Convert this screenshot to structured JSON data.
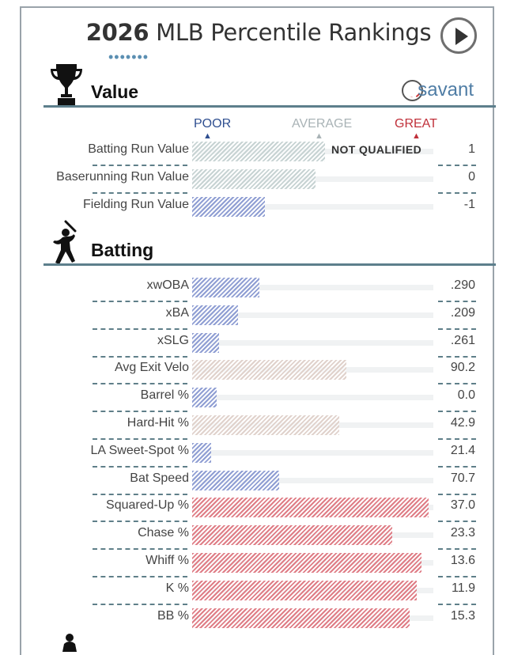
{
  "header": {
    "title_year": "2026",
    "title_rest": " MLB Percentile Rankings",
    "dots": "•••••••"
  },
  "brand": {
    "name": "savant"
  },
  "legend": {
    "poor": "POOR",
    "average": "AVERAGE",
    "great": "GREAT"
  },
  "colors": {
    "poor": "#2f4f90",
    "average": "#a9b3b6",
    "great": "#c0303a",
    "bar_blue": "#8f9ed3",
    "bar_grey": "#c7d3d3",
    "bar_beige": "#e0d2cc",
    "bar_red": "#df7d86",
    "rule": "#5d7f8c"
  },
  "sections": [
    {
      "title": "Value",
      "icon": "trophy-icon",
      "rows": [
        {
          "label": "Batting Run Value",
          "value": "1",
          "percentile": 55,
          "color": "bar_grey",
          "note": "NOT QUALIFIED"
        },
        {
          "label": "Baserunning Run Value",
          "value": "0",
          "percentile": 51,
          "color": "bar_grey",
          "note": ""
        },
        {
          "label": "Fielding Run Value",
          "value": "-1",
          "percentile": 30,
          "color": "bar_blue",
          "note": ""
        }
      ]
    },
    {
      "title": "Batting",
      "icon": "batter-icon",
      "rows": [
        {
          "label": "xwOBA",
          "value": ".290",
          "percentile": 28,
          "color": "bar_blue"
        },
        {
          "label": "xBA",
          "value": ".209",
          "percentile": 19,
          "color": "bar_blue"
        },
        {
          "label": "xSLG",
          "value": ".261",
          "percentile": 11,
          "color": "bar_blue"
        },
        {
          "label": "Avg Exit Velo",
          "value": "90.2",
          "percentile": 64,
          "color": "bar_beige"
        },
        {
          "label": "Barrel %",
          "value": "0.0",
          "percentile": 10,
          "color": "bar_blue"
        },
        {
          "label": "Hard-Hit %",
          "value": "42.9",
          "percentile": 61,
          "color": "bar_beige"
        },
        {
          "label": "LA Sweet-Spot %",
          "value": "21.4",
          "percentile": 8,
          "color": "bar_blue"
        },
        {
          "label": "Bat Speed",
          "value": "70.7",
          "percentile": 36,
          "color": "bar_blue"
        },
        {
          "label": "Squared-Up %",
          "value": "37.0",
          "percentile": 98,
          "color": "bar_red"
        },
        {
          "label": "Chase %",
          "value": "23.3",
          "percentile": 83,
          "color": "bar_red"
        },
        {
          "label": "Whiff %",
          "value": "13.6",
          "percentile": 95,
          "color": "bar_red"
        },
        {
          "label": "K %",
          "value": "11.9",
          "percentile": 93,
          "color": "bar_red"
        },
        {
          "label": "BB %",
          "value": "15.3",
          "percentile": 90,
          "color": "bar_red"
        }
      ]
    }
  ]
}
